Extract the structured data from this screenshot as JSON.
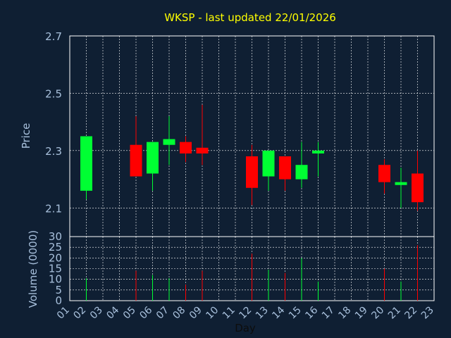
{
  "chart_data": {
    "type": "candlestick",
    "title": "WKSP - last updated 22/01/2026",
    "xlabel": "Day",
    "ylabel_price": "Price",
    "ylabel_volume": "Volume (0000)",
    "x_ticks": [
      "01",
      "02",
      "03",
      "04",
      "05",
      "06",
      "07",
      "08",
      "09",
      "10",
      "11",
      "12",
      "13",
      "14",
      "15",
      "16",
      "17",
      "18",
      "19",
      "20",
      "21",
      "22",
      "23"
    ],
    "price_ylim": [
      2.0,
      2.7
    ],
    "price_ticks": [
      "2.7",
      "2.5",
      "2.3",
      "2.1"
    ],
    "volume_ylim": [
      0,
      30
    ],
    "volume_ticks": [
      "30",
      "25",
      "20",
      "15",
      "10",
      "5",
      "0"
    ],
    "grid": true,
    "colors": {
      "up": "#00ff33",
      "down": "#ff0000",
      "grid": "#ffffff",
      "axis": "#ffffff",
      "background": "#0f1f33"
    },
    "candles": [
      {
        "day": "02",
        "open": 2.16,
        "high": 2.35,
        "low": 2.13,
        "close": 2.35,
        "volume": 10.5
      },
      {
        "day": "05",
        "open": 2.32,
        "high": 2.42,
        "low": 2.21,
        "close": 2.21,
        "volume": 14
      },
      {
        "day": "06",
        "open": 2.22,
        "high": 2.33,
        "low": 2.16,
        "close": 2.33,
        "volume": 12
      },
      {
        "day": "07",
        "open": 2.32,
        "high": 2.42,
        "low": 2.25,
        "close": 2.34,
        "volume": 10.5
      },
      {
        "day": "08",
        "open": 2.33,
        "high": 2.35,
        "low": 2.26,
        "close": 2.29,
        "volume": 7.5
      },
      {
        "day": "09",
        "open": 2.31,
        "high": 2.46,
        "low": 2.25,
        "close": 2.29,
        "volume": 14
      },
      {
        "day": "12",
        "open": 2.28,
        "high": 2.32,
        "low": 2.11,
        "close": 2.17,
        "volume": 22
      },
      {
        "day": "13",
        "open": 2.21,
        "high": 2.3,
        "low": 2.16,
        "close": 2.3,
        "volume": 14.5
      },
      {
        "day": "14",
        "open": 2.28,
        "high": 2.28,
        "low": 2.16,
        "close": 2.2,
        "volume": 13
      },
      {
        "day": "15",
        "open": 2.2,
        "high": 2.33,
        "low": 2.17,
        "close": 2.25,
        "volume": 20
      },
      {
        "day": "16",
        "open": 2.29,
        "high": 2.33,
        "low": 2.21,
        "close": 2.3,
        "volume": 9
      },
      {
        "day": "20",
        "open": 2.25,
        "high": 2.27,
        "low": 2.15,
        "close": 2.19,
        "volume": 15
      },
      {
        "day": "21",
        "open": 2.18,
        "high": 2.24,
        "low": 2.1,
        "close": 2.19,
        "volume": 9
      },
      {
        "day": "22",
        "open": 2.22,
        "high": 2.3,
        "low": 2.09,
        "close": 2.12,
        "volume": 26
      }
    ]
  }
}
